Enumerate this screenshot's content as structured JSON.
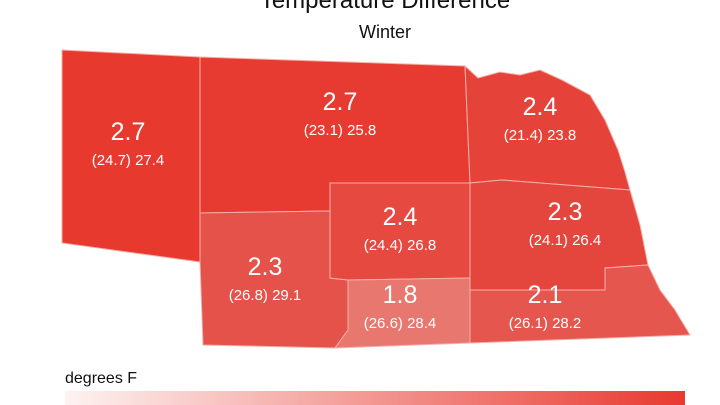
{
  "title": "Temperature Difference",
  "subtitle": "Winter",
  "regions": [
    {
      "value": 2.7,
      "detail": "(24.7) 27.4",
      "color": "#e8392f"
    },
    {
      "value": 2.7,
      "detail": "(23.1) 25.8",
      "color": "#e73a30"
    },
    {
      "value": 2.4,
      "detail": "(21.4) 23.8",
      "color": "#e5433a"
    },
    {
      "value": 2.3,
      "detail": "(26.8) 29.1",
      "color": "#e4524a"
    },
    {
      "value": 2.4,
      "detail": "(24.4) 26.8",
      "color": "#e5493f"
    },
    {
      "value": 2.3,
      "detail": "(24.1) 26.4",
      "color": "#e4463d"
    },
    {
      "value": 1.8,
      "detail": "(26.6) 28.4",
      "color": "#e8776f"
    },
    {
      "value": 2.1,
      "detail": "(26.1) 28.2",
      "color": "#e5564e"
    }
  ],
  "legend": {
    "label": "degrees F"
  }
}
